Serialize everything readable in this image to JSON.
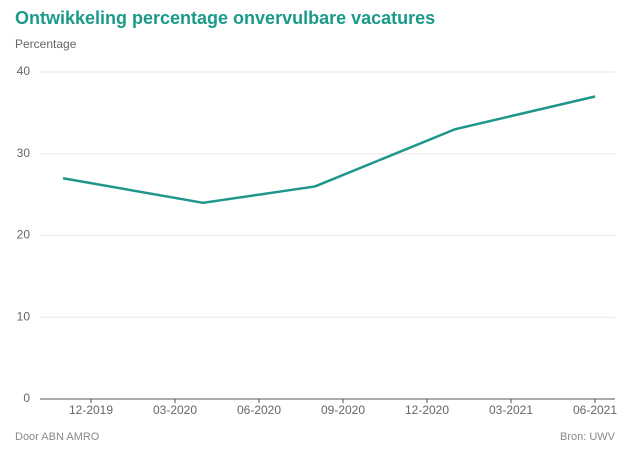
{
  "chart_data": {
    "type": "line",
    "title": "Ontwikkeling percentage onvervulbare vacatures",
    "y_label": "Percentage",
    "x": [
      "11-2019",
      "04-2020",
      "08-2020",
      "01-2021",
      "06-2021"
    ],
    "series": [
      {
        "name": "Percentage",
        "color": "#1f968a",
        "values": [
          27,
          24,
          26,
          33,
          37
        ]
      }
    ],
    "xlim": [
      "10-2019",
      "07-2021"
    ],
    "xticks": [
      "12-2019",
      "03-2020",
      "06-2020",
      "09-2020",
      "12-2020",
      "03-2021",
      "06-2021"
    ],
    "ylim": [
      0,
      40
    ],
    "yticks": [
      0,
      10,
      20,
      30,
      40
    ],
    "grid": true,
    "source_left": "Door ABN AMRO",
    "source_right": "Bron:  UWV"
  }
}
